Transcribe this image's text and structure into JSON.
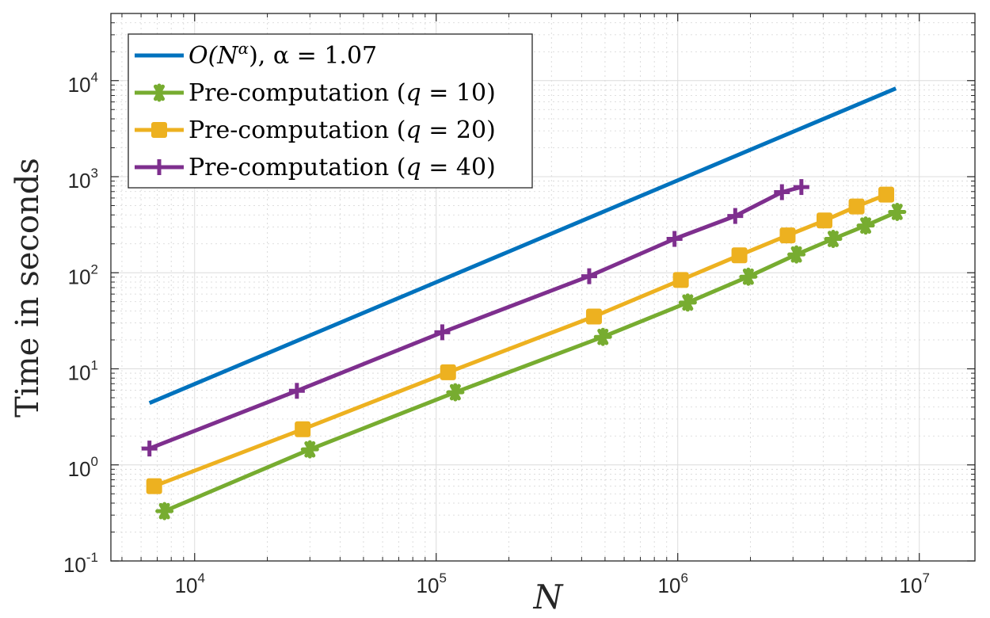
{
  "chart_data": {
    "type": "line",
    "title": "",
    "xlabel": "N",
    "ylabel": "Time in seconds",
    "xscale": "log",
    "yscale": "log",
    "xlim": [
      4500,
      17000000
    ],
    "ylim": [
      0.1,
      50000
    ],
    "grid": true,
    "minor_grid": true,
    "legend_position": "top-left",
    "x_ticks": [
      {
        "value": 10000,
        "base": "10",
        "exp": "4"
      },
      {
        "value": 100000,
        "base": "10",
        "exp": "5"
      },
      {
        "value": 1000000,
        "base": "10",
        "exp": "6"
      },
      {
        "value": 10000000,
        "base": "10",
        "exp": "7"
      }
    ],
    "y_ticks": [
      {
        "value": 0.1,
        "base": "10",
        "exp": "-1"
      },
      {
        "value": 1,
        "base": "10",
        "exp": "0"
      },
      {
        "value": 10,
        "base": "10",
        "exp": "1"
      },
      {
        "value": 100,
        "base": "10",
        "exp": "2"
      },
      {
        "value": 1000,
        "base": "10",
        "exp": "3"
      },
      {
        "value": 10000,
        "base": "10",
        "exp": "4"
      }
    ],
    "series": [
      {
        "name": "O(N^α), α = 1.07",
        "legend": {
          "prefix": "O(N",
          "sup": "α",
          "suffix": "), α = 1.07"
        },
        "color": "#0072BD",
        "marker": "none",
        "x": [
          6500,
          8000000
        ],
        "y": [
          4.4,
          8300
        ]
      },
      {
        "name": "Pre-computation (q = 10)",
        "legend": {
          "prefix": "Pre-computation (",
          "var": "q",
          "suffix": " = 10)"
        },
        "color": "#77AC30",
        "marker": "star",
        "x": [
          7500,
          30000,
          120000,
          490000,
          1100000,
          1960000,
          3100000,
          4400000,
          6000000,
          8100000
        ],
        "y": [
          0.33,
          1.45,
          5.7,
          21.5,
          49,
          91,
          155,
          225,
          310,
          430
        ]
      },
      {
        "name": "Pre-computation (q = 20)",
        "legend": {
          "prefix": "Pre-computation (",
          "var": "q",
          "suffix": " = 20)"
        },
        "color": "#EDB120",
        "marker": "square",
        "x": [
          6800,
          28000,
          112000,
          450000,
          1030000,
          1800000,
          2850000,
          4050000,
          5500000,
          7300000
        ],
        "y": [
          0.6,
          2.35,
          9.2,
          35,
          84,
          152,
          245,
          350,
          490,
          650
        ]
      },
      {
        "name": "Pre-computation (q = 40)",
        "legend": {
          "prefix": "Pre-computation (",
          "var": "q",
          "suffix": " = 40)"
        },
        "color": "#7E2F8E",
        "marker": "plus",
        "x": [
          6500,
          26500,
          106000,
          430000,
          970000,
          1730000,
          2700000,
          3250000
        ],
        "y": [
          1.48,
          5.9,
          24,
          92,
          225,
          390,
          690,
          780
        ]
      }
    ]
  }
}
